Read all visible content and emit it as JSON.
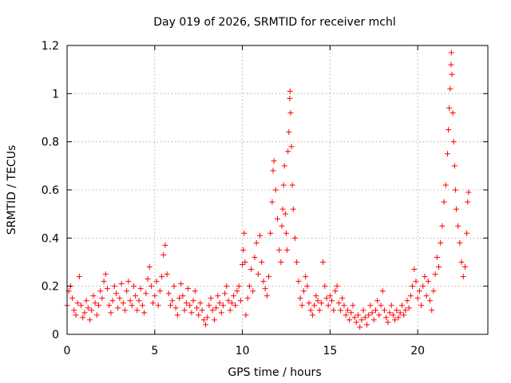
{
  "chart_data": {
    "type": "scatter",
    "title": "Day 019 of 2026, SRMTID for receiver mchl",
    "xlabel": "GPS time / hours",
    "ylabel": "SRMTID / TECUs",
    "xlim": [
      0,
      24
    ],
    "ylim": [
      0,
      1.2
    ],
    "xticks": [
      0,
      5,
      10,
      15,
      20
    ],
    "xtick_labels": [
      "0",
      "5",
      "10",
      "15",
      "20"
    ],
    "yticks": [
      0,
      0.2,
      0.4,
      0.6,
      0.8,
      1,
      1.2
    ],
    "ytick_labels": [
      "0",
      "0.2",
      "0.4",
      "0.6",
      "0.8",
      "1",
      "1.2"
    ],
    "grid": true,
    "marker": "+",
    "series": [
      {
        "name": "SRMTID",
        "color": "#ff0000",
        "points": [
          [
            0.0,
            0.12
          ],
          [
            0.1,
            0.18
          ],
          [
            0.2,
            0.2
          ],
          [
            0.3,
            0.15
          ],
          [
            0.4,
            0.1
          ],
          [
            0.5,
            0.08
          ],
          [
            0.6,
            0.13
          ],
          [
            0.7,
            0.24
          ],
          [
            0.8,
            0.12
          ],
          [
            0.9,
            0.07
          ],
          [
            1.0,
            0.09
          ],
          [
            1.1,
            0.14
          ],
          [
            1.2,
            0.11
          ],
          [
            1.3,
            0.06
          ],
          [
            1.4,
            0.1
          ],
          [
            1.5,
            0.16
          ],
          [
            1.6,
            0.13
          ],
          [
            1.7,
            0.08
          ],
          [
            1.8,
            0.12
          ],
          [
            1.9,
            0.18
          ],
          [
            2.0,
            0.15
          ],
          [
            2.1,
            0.22
          ],
          [
            2.2,
            0.25
          ],
          [
            2.3,
            0.19
          ],
          [
            2.4,
            0.12
          ],
          [
            2.5,
            0.09
          ],
          [
            2.6,
            0.14
          ],
          [
            2.7,
            0.2
          ],
          [
            2.8,
            0.17
          ],
          [
            2.9,
            0.11
          ],
          [
            3.0,
            0.15
          ],
          [
            3.1,
            0.21
          ],
          [
            3.2,
            0.13
          ],
          [
            3.3,
            0.1
          ],
          [
            3.4,
            0.18
          ],
          [
            3.5,
            0.22
          ],
          [
            3.6,
            0.14
          ],
          [
            3.7,
            0.12
          ],
          [
            3.8,
            0.2
          ],
          [
            3.9,
            0.16
          ],
          [
            4.0,
            0.1
          ],
          [
            4.1,
            0.14
          ],
          [
            4.2,
            0.19
          ],
          [
            4.3,
            0.12
          ],
          [
            4.4,
            0.09
          ],
          [
            4.5,
            0.17
          ],
          [
            4.6,
            0.23
          ],
          [
            4.7,
            0.28
          ],
          [
            4.8,
            0.2
          ],
          [
            4.9,
            0.13
          ],
          [
            5.0,
            0.16
          ],
          [
            5.1,
            0.22
          ],
          [
            5.2,
            0.12
          ],
          [
            5.3,
            0.18
          ],
          [
            5.4,
            0.24
          ],
          [
            5.5,
            0.33
          ],
          [
            5.6,
            0.37
          ],
          [
            5.7,
            0.25
          ],
          [
            5.8,
            0.17
          ],
          [
            5.9,
            0.12
          ],
          [
            6.0,
            0.14
          ],
          [
            6.1,
            0.2
          ],
          [
            6.2,
            0.11
          ],
          [
            6.3,
            0.08
          ],
          [
            6.4,
            0.15
          ],
          [
            6.5,
            0.21
          ],
          [
            6.6,
            0.16
          ],
          [
            6.7,
            0.1
          ],
          [
            6.8,
            0.13
          ],
          [
            6.9,
            0.19
          ],
          [
            7.0,
            0.12
          ],
          [
            7.1,
            0.09
          ],
          [
            7.2,
            0.14
          ],
          [
            7.3,
            0.18
          ],
          [
            7.4,
            0.11
          ],
          [
            7.5,
            0.08
          ],
          [
            7.6,
            0.13
          ],
          [
            7.7,
            0.1
          ],
          [
            7.8,
            0.06
          ],
          [
            7.9,
            0.04
          ],
          [
            8.0,
            0.07
          ],
          [
            8.1,
            0.12
          ],
          [
            8.2,
            0.15
          ],
          [
            8.3,
            0.1
          ],
          [
            8.4,
            0.06
          ],
          [
            8.5,
            0.11
          ],
          [
            8.6,
            0.16
          ],
          [
            8.7,
            0.13
          ],
          [
            8.8,
            0.09
          ],
          [
            8.9,
            0.12
          ],
          [
            9.0,
            0.17
          ],
          [
            9.1,
            0.2
          ],
          [
            9.2,
            0.14
          ],
          [
            9.3,
            0.1
          ],
          [
            9.4,
            0.13
          ],
          [
            9.5,
            0.16
          ],
          [
            9.6,
            0.12
          ],
          [
            9.7,
            0.18
          ],
          [
            9.8,
            0.2
          ],
          [
            9.9,
            0.14
          ],
          [
            10.0,
            0.29
          ],
          [
            10.05,
            0.35
          ],
          [
            10.1,
            0.42
          ],
          [
            10.15,
            0.3
          ],
          [
            10.2,
            0.08
          ],
          [
            10.3,
            0.15
          ],
          [
            10.4,
            0.2
          ],
          [
            10.5,
            0.27
          ],
          [
            10.6,
            0.18
          ],
          [
            10.7,
            0.32
          ],
          [
            10.8,
            0.38
          ],
          [
            10.9,
            0.25
          ],
          [
            11.0,
            0.41
          ],
          [
            11.1,
            0.3
          ],
          [
            11.2,
            0.22
          ],
          [
            11.3,
            0.19
          ],
          [
            11.4,
            0.16
          ],
          [
            11.5,
            0.24
          ],
          [
            11.6,
            0.42
          ],
          [
            11.7,
            0.55
          ],
          [
            11.75,
            0.68
          ],
          [
            11.8,
            0.72
          ],
          [
            11.9,
            0.6
          ],
          [
            12.0,
            0.48
          ],
          [
            12.1,
            0.35
          ],
          [
            12.2,
            0.3
          ],
          [
            12.25,
            0.45
          ],
          [
            12.3,
            0.52
          ],
          [
            12.35,
            0.62
          ],
          [
            12.4,
            0.7
          ],
          [
            12.45,
            0.5
          ],
          [
            12.5,
            0.42
          ],
          [
            12.55,
            0.35
          ],
          [
            12.6,
            0.76
          ],
          [
            12.65,
            0.84
          ],
          [
            12.7,
            0.98
          ],
          [
            12.72,
            1.01
          ],
          [
            12.75,
            0.92
          ],
          [
            12.8,
            0.78
          ],
          [
            12.85,
            0.62
          ],
          [
            12.9,
            0.52
          ],
          [
            13.0,
            0.4
          ],
          [
            13.1,
            0.3
          ],
          [
            13.2,
            0.22
          ],
          [
            13.3,
            0.15
          ],
          [
            13.4,
            0.12
          ],
          [
            13.5,
            0.18
          ],
          [
            13.6,
            0.24
          ],
          [
            13.7,
            0.2
          ],
          [
            13.8,
            0.13
          ],
          [
            13.9,
            0.1
          ],
          [
            14.0,
            0.08
          ],
          [
            14.1,
            0.12
          ],
          [
            14.2,
            0.16
          ],
          [
            14.3,
            0.14
          ],
          [
            14.4,
            0.1
          ],
          [
            14.5,
            0.13
          ],
          [
            14.6,
            0.3
          ],
          [
            14.7,
            0.2
          ],
          [
            14.8,
            0.15
          ],
          [
            14.9,
            0.12
          ],
          [
            15.0,
            0.16
          ],
          [
            15.1,
            0.14
          ],
          [
            15.2,
            0.1
          ],
          [
            15.3,
            0.18
          ],
          [
            15.4,
            0.2
          ],
          [
            15.5,
            0.13
          ],
          [
            15.6,
            0.1
          ],
          [
            15.7,
            0.15
          ],
          [
            15.8,
            0.12
          ],
          [
            15.9,
            0.08
          ],
          [
            16.0,
            0.1
          ],
          [
            16.1,
            0.06
          ],
          [
            16.2,
            0.09
          ],
          [
            16.3,
            0.12
          ],
          [
            16.4,
            0.07
          ],
          [
            16.5,
            0.05
          ],
          [
            16.6,
            0.08
          ],
          [
            16.7,
            0.03
          ],
          [
            16.8,
            0.06
          ],
          [
            16.9,
            0.1
          ],
          [
            17.0,
            0.07
          ],
          [
            17.1,
            0.04
          ],
          [
            17.2,
            0.08
          ],
          [
            17.3,
            0.12
          ],
          [
            17.4,
            0.09
          ],
          [
            17.5,
            0.06
          ],
          [
            17.6,
            0.1
          ],
          [
            17.7,
            0.14
          ],
          [
            17.8,
            0.08
          ],
          [
            17.9,
            0.12
          ],
          [
            18.0,
            0.18
          ],
          [
            18.1,
            0.1
          ],
          [
            18.2,
            0.07
          ],
          [
            18.3,
            0.05
          ],
          [
            18.4,
            0.09
          ],
          [
            18.5,
            0.12
          ],
          [
            18.6,
            0.08
          ],
          [
            18.7,
            0.06
          ],
          [
            18.8,
            0.1
          ],
          [
            18.9,
            0.07
          ],
          [
            19.0,
            0.09
          ],
          [
            19.1,
            0.12
          ],
          [
            19.2,
            0.08
          ],
          [
            19.3,
            0.1
          ],
          [
            19.4,
            0.14
          ],
          [
            19.5,
            0.11
          ],
          [
            19.6,
            0.16
          ],
          [
            19.7,
            0.2
          ],
          [
            19.8,
            0.27
          ],
          [
            19.9,
            0.22
          ],
          [
            20.0,
            0.15
          ],
          [
            20.1,
            0.18
          ],
          [
            20.2,
            0.12
          ],
          [
            20.3,
            0.2
          ],
          [
            20.4,
            0.24
          ],
          [
            20.5,
            0.16
          ],
          [
            20.6,
            0.22
          ],
          [
            20.7,
            0.14
          ],
          [
            20.8,
            0.1
          ],
          [
            20.9,
            0.18
          ],
          [
            21.0,
            0.25
          ],
          [
            21.1,
            0.32
          ],
          [
            21.2,
            0.28
          ],
          [
            21.3,
            0.38
          ],
          [
            21.4,
            0.45
          ],
          [
            21.5,
            0.55
          ],
          [
            21.6,
            0.62
          ],
          [
            21.7,
            0.75
          ],
          [
            21.75,
            0.85
          ],
          [
            21.8,
            0.94
          ],
          [
            21.85,
            1.02
          ],
          [
            21.9,
            1.12
          ],
          [
            21.92,
            1.17
          ],
          [
            21.95,
            1.08
          ],
          [
            22.0,
            0.92
          ],
          [
            22.05,
            0.8
          ],
          [
            22.1,
            0.7
          ],
          [
            22.15,
            0.6
          ],
          [
            22.2,
            0.52
          ],
          [
            22.3,
            0.45
          ],
          [
            22.4,
            0.38
          ],
          [
            22.5,
            0.3
          ],
          [
            22.6,
            0.24
          ],
          [
            22.7,
            0.28
          ],
          [
            22.8,
            0.42
          ],
          [
            22.85,
            0.55
          ],
          [
            22.9,
            0.59
          ]
        ]
      }
    ]
  }
}
